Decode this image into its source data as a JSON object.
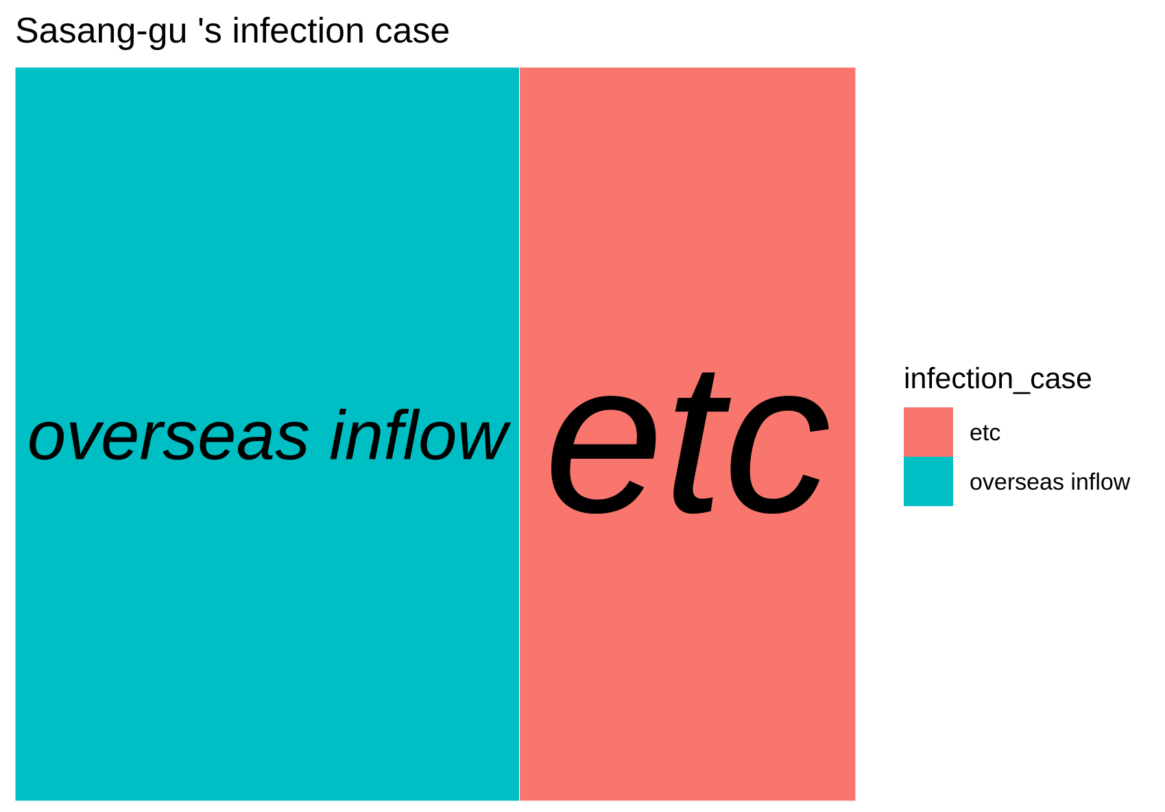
{
  "chart_data": {
    "type": "treemap",
    "title": "Sasang-gu 's infection case",
    "legend": {
      "title": "infection_case",
      "placement": "right",
      "entries": [
        {
          "label": "etc",
          "color": "#F8766D"
        },
        {
          "label": "overseas inflow",
          "color": "#00BFC4"
        }
      ]
    },
    "tiles": [
      {
        "category": "overseas inflow",
        "share": 0.6,
        "color": "#00BFC4"
      },
      {
        "category": "etc",
        "share": 0.4,
        "color": "#F8766D"
      }
    ]
  }
}
